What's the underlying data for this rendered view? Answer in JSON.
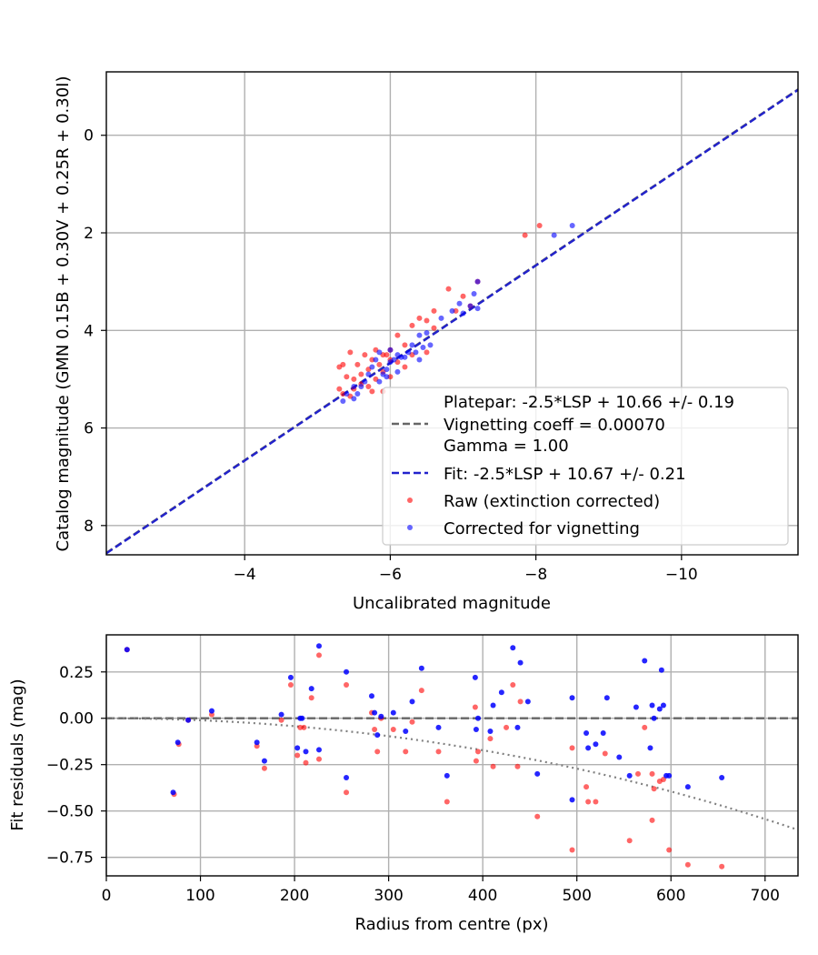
{
  "colors": {
    "raw": "#ff0000",
    "corrected": "#0000ff",
    "fit": "#2222cc",
    "platepar": "#666666",
    "vignetting": "#808080",
    "grid": "#b0b0b0"
  },
  "chart_data": [
    {
      "type": "scatter",
      "xlabel": "Uncalibrated magnitude",
      "ylabel": "Catalog magnitude (GMN 0.15B + 0.30V + 0.25R + 0.30I)",
      "xlim": [
        -2.1,
        -11.6
      ],
      "ylim": [
        8.6,
        -1.3
      ],
      "x_inverted": true,
      "y_inverted": true,
      "grid": true,
      "xticks": [
        -4,
        -6,
        -8,
        -10
      ],
      "xtick_labels": [
        "−4",
        "−6",
        "−8",
        "−10"
      ],
      "yticks": [
        0,
        2,
        4,
        6,
        8
      ],
      "ytick_labels": [
        "0",
        "2",
        "4",
        "6",
        "8"
      ],
      "lines": [
        {
          "name": "platepar",
          "slope": -2.5,
          "intercept": 10.66,
          "style": "dashed",
          "color": "#666666"
        },
        {
          "name": "fit",
          "slope": -2.5,
          "intercept": 10.67,
          "style": "dashed",
          "color": "#2222cc"
        }
      ],
      "legend": {
        "placement": "lower-right",
        "entries": [
          {
            "kind": "none",
            "label": "Platepar: -2.5*LSP + 10.66 +/- 0.19"
          },
          {
            "kind": "line",
            "label": "Vignetting coeff = 0.00070",
            "color": "#666666"
          },
          {
            "kind": "none",
            "label": "Gamma = 1.00"
          },
          {
            "kind": "line",
            "label": "Fit: -2.5*LSP + 10.67 +/- 0.21",
            "color": "#2222cc"
          },
          {
            "kind": "marker",
            "label": "Raw (extinction corrected)",
            "color": "#ff0000"
          },
          {
            "kind": "marker",
            "label": "Corrected for vignetting",
            "color": "#0000ff"
          }
        ]
      },
      "series": [
        {
          "name": "Raw (extinction corrected)",
          "color": "#ff0000",
          "points": [
            [
              -7.85,
              2.05
            ],
            [
              -8.05,
              1.85
            ],
            [
              -7.2,
              3.0
            ],
            [
              -7.0,
              3.3
            ],
            [
              -6.8,
              3.15
            ],
            [
              -7.1,
              3.5
            ],
            [
              -6.9,
              3.6
            ],
            [
              -6.6,
              3.6
            ],
            [
              -6.5,
              3.8
            ],
            [
              -6.4,
              3.75
            ],
            [
              -6.6,
              3.95
            ],
            [
              -6.3,
              3.9
            ],
            [
              -6.1,
              4.1
            ],
            [
              -6.2,
              4.3
            ],
            [
              -6.3,
              4.5
            ],
            [
              -6.5,
              4.45
            ],
            [
              -6.0,
              4.4
            ],
            [
              -5.9,
              4.5
            ],
            [
              -5.85,
              4.7
            ],
            [
              -5.8,
              4.4
            ],
            [
              -5.75,
              4.6
            ],
            [
              -5.7,
              4.8
            ],
            [
              -5.65,
              4.5
            ],
            [
              -5.6,
              4.9
            ],
            [
              -5.55,
              4.7
            ],
            [
              -5.5,
              5.0
            ],
            [
              -5.4,
              4.95
            ],
            [
              -5.35,
              4.7
            ],
            [
              -5.3,
              4.75
            ],
            [
              -5.45,
              4.45
            ],
            [
              -5.3,
              5.2
            ],
            [
              -5.35,
              5.3
            ],
            [
              -5.45,
              5.35
            ],
            [
              -5.6,
              5.1
            ],
            [
              -5.7,
              5.15
            ],
            [
              -5.8,
              5.0
            ],
            [
              -5.9,
              4.85
            ],
            [
              -6.0,
              4.95
            ],
            [
              -5.9,
              5.25
            ],
            [
              -5.75,
              5.25
            ],
            [
              -6.0,
              4.6
            ],
            [
              -6.1,
              4.65
            ],
            [
              -5.95,
              4.5
            ],
            [
              -6.2,
              4.75
            ],
            [
              -5.5,
              5.2
            ]
          ]
        },
        {
          "name": "Corrected for vignetting",
          "color": "#0000ff",
          "points": [
            [
              -8.5,
              1.85
            ],
            [
              -8.25,
              2.05
            ],
            [
              -7.2,
              3.0
            ],
            [
              -7.15,
              3.25
            ],
            [
              -7.1,
              3.5
            ],
            [
              -7.2,
              3.55
            ],
            [
              -6.95,
              3.45
            ],
            [
              -6.85,
              3.6
            ],
            [
              -6.7,
              3.75
            ],
            [
              -7.0,
              3.65
            ],
            [
              -6.5,
              4.05
            ],
            [
              -6.4,
              4.1
            ],
            [
              -6.3,
              4.3
            ],
            [
              -6.35,
              4.45
            ],
            [
              -6.2,
              4.55
            ],
            [
              -6.1,
              4.5
            ],
            [
              -6.0,
              4.4
            ],
            [
              -6.05,
              4.6
            ],
            [
              -5.95,
              4.8
            ],
            [
              -5.9,
              4.9
            ],
            [
              -5.85,
              4.45
            ],
            [
              -5.8,
              4.6
            ],
            [
              -5.75,
              4.75
            ],
            [
              -5.7,
              4.9
            ],
            [
              -5.65,
              5.05
            ],
            [
              -5.6,
              5.15
            ],
            [
              -5.55,
              5.3
            ],
            [
              -5.5,
              5.15
            ],
            [
              -5.4,
              5.3
            ],
            [
              -5.35,
              5.45
            ],
            [
              -5.5,
              5.4
            ],
            [
              -5.85,
              5.05
            ],
            [
              -6.15,
              4.55
            ],
            [
              -6.25,
              4.45
            ],
            [
              -6.4,
              4.6
            ],
            [
              -6.0,
              4.65
            ],
            [
              -6.45,
              4.35
            ],
            [
              -6.55,
              4.3
            ],
            [
              -5.95,
              4.95
            ],
            [
              -6.1,
              4.85
            ]
          ]
        }
      ]
    },
    {
      "type": "scatter",
      "xlabel": "Radius from centre (px)",
      "ylabel": "Fit residuals (mag)",
      "xlim": [
        0,
        735
      ],
      "ylim": [
        -0.85,
        0.45
      ],
      "grid": true,
      "xticks": [
        0,
        100,
        200,
        300,
        400,
        500,
        600,
        700
      ],
      "xtick_labels": [
        "0",
        "100",
        "200",
        "300",
        "400",
        "500",
        "600",
        "700"
      ],
      "yticks": [
        0.25,
        0.0,
        -0.25,
        -0.5,
        -0.75
      ],
      "ytick_labels": [
        "0.25",
        "0.00",
        "−0.25",
        "−0.50",
        "−0.75"
      ],
      "reference_lines": [
        {
          "name": "zero",
          "y": 0.0,
          "style": "dashed",
          "color": "#666666"
        },
        {
          "name": "vignetting-curve",
          "vignetting_coeff": 0.0007,
          "style": "dotted",
          "color": "#808080"
        }
      ],
      "series": [
        {
          "name": "Raw (extinction corrected)",
          "color": "#ff0000",
          "points": [
            [
              22,
              0.37
            ],
            [
              72,
              -0.41
            ],
            [
              77,
              -0.14
            ],
            [
              87,
              -0.01
            ],
            [
              112,
              0.02
            ],
            [
              160,
              -0.15
            ],
            [
              168,
              -0.27
            ],
            [
              186,
              -0.01
            ],
            [
              196,
              0.18
            ],
            [
              203,
              -0.2
            ],
            [
              206,
              -0.05
            ],
            [
              210,
              -0.05
            ],
            [
              212,
              -0.24
            ],
            [
              218,
              0.11
            ],
            [
              226,
              0.34
            ],
            [
              226,
              -0.22
            ],
            [
              255,
              0.18
            ],
            [
              255,
              -0.4
            ],
            [
              282,
              0.03
            ],
            [
              285,
              -0.06
            ],
            [
              288,
              -0.18
            ],
            [
              292,
              0.0
            ],
            [
              305,
              -0.06
            ],
            [
              318,
              -0.18
            ],
            [
              325,
              -0.02
            ],
            [
              335,
              0.15
            ],
            [
              353,
              -0.18
            ],
            [
              362,
              -0.45
            ],
            [
              392,
              0.06
            ],
            [
              393,
              -0.23
            ],
            [
              395,
              -0.18
            ],
            [
              408,
              -0.11
            ],
            [
              411,
              -0.26
            ],
            [
              425,
              -0.05
            ],
            [
              432,
              0.18
            ],
            [
              437,
              -0.26
            ],
            [
              440,
              0.09
            ],
            [
              458,
              -0.53
            ],
            [
              495,
              -0.16
            ],
            [
              495,
              -0.71
            ],
            [
              510,
              -0.37
            ],
            [
              512,
              -0.45
            ],
            [
              520,
              -0.45
            ],
            [
              530,
              -0.19
            ],
            [
              556,
              -0.66
            ],
            [
              565,
              -0.3
            ],
            [
              572,
              -0.05
            ],
            [
              580,
              -0.3
            ],
            [
              580,
              -0.55
            ],
            [
              582,
              -0.38
            ],
            [
              588,
              -0.34
            ],
            [
              592,
              -0.33
            ],
            [
              598,
              -0.71
            ],
            [
              618,
              -0.79
            ],
            [
              654,
              -0.8
            ]
          ]
        },
        {
          "name": "Corrected for vignetting",
          "color": "#0000ff",
          "points": [
            [
              22,
              0.37
            ],
            [
              71,
              -0.4
            ],
            [
              76,
              -0.13
            ],
            [
              87,
              -0.01
            ],
            [
              112,
              0.04
            ],
            [
              160,
              -0.13
            ],
            [
              168,
              -0.23
            ],
            [
              186,
              0.02
            ],
            [
              196,
              0.22
            ],
            [
              203,
              -0.16
            ],
            [
              206,
              0.0
            ],
            [
              208,
              0.0
            ],
            [
              212,
              -0.18
            ],
            [
              218,
              0.16
            ],
            [
              226,
              0.39
            ],
            [
              226,
              -0.17
            ],
            [
              255,
              0.25
            ],
            [
              255,
              -0.32
            ],
            [
              282,
              0.12
            ],
            [
              285,
              0.03
            ],
            [
              288,
              -0.09
            ],
            [
              292,
              0.01
            ],
            [
              305,
              0.03
            ],
            [
              318,
              -0.07
            ],
            [
              325,
              0.09
            ],
            [
              335,
              0.27
            ],
            [
              353,
              -0.05
            ],
            [
              362,
              -0.31
            ],
            [
              392,
              0.22
            ],
            [
              393,
              -0.06
            ],
            [
              395,
              0.0
            ],
            [
              408,
              -0.07
            ],
            [
              411,
              0.07
            ],
            [
              420,
              0.14
            ],
            [
              432,
              0.38
            ],
            [
              437,
              -0.05
            ],
            [
              440,
              0.3
            ],
            [
              448,
              0.09
            ],
            [
              458,
              -0.3
            ],
            [
              495,
              0.11
            ],
            [
              495,
              -0.44
            ],
            [
              510,
              -0.08
            ],
            [
              512,
              -0.16
            ],
            [
              520,
              -0.14
            ],
            [
              528,
              -0.08
            ],
            [
              532,
              0.11
            ],
            [
              545,
              -0.21
            ],
            [
              556,
              -0.31
            ],
            [
              563,
              0.06
            ],
            [
              572,
              0.31
            ],
            [
              578,
              -0.16
            ],
            [
              580,
              0.07
            ],
            [
              582,
              0.0
            ],
            [
              588,
              0.05
            ],
            [
              590,
              0.26
            ],
            [
              592,
              0.07
            ],
            [
              595,
              -0.31
            ],
            [
              598,
              -0.31
            ],
            [
              618,
              -0.37
            ],
            [
              654,
              -0.32
            ]
          ]
        }
      ]
    }
  ]
}
